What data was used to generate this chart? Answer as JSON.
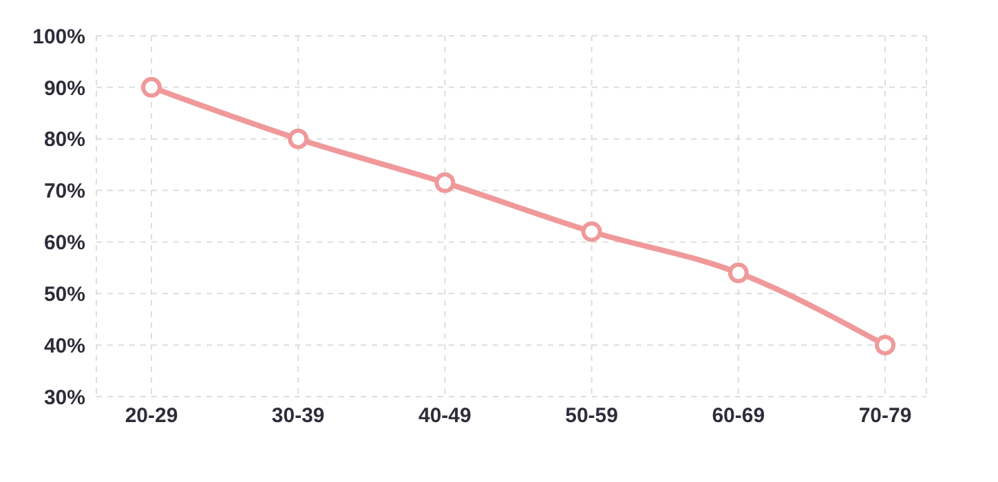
{
  "chart_data": {
    "type": "line",
    "categories": [
      "20-29",
      "30-39",
      "40-49",
      "50-59",
      "60-69",
      "70-79"
    ],
    "series": [
      {
        "color": "#f0999a",
        "values": [
          90,
          80,
          71.5,
          62,
          54,
          40
        ]
      }
    ],
    "ylim": [
      30,
      100
    ],
    "yticks": [
      {
        "value": 30,
        "label": "30%"
      },
      {
        "value": 40,
        "label": "40%"
      },
      {
        "value": 50,
        "label": "50%"
      },
      {
        "value": 60,
        "label": "60%"
      },
      {
        "value": 70,
        "label": "70%"
      },
      {
        "value": 80,
        "label": "80%"
      },
      {
        "value": 90,
        "label": "90%"
      },
      {
        "value": 100,
        "label": "100%"
      }
    ],
    "grid": true,
    "marker": "circle",
    "line_style": "solid"
  }
}
